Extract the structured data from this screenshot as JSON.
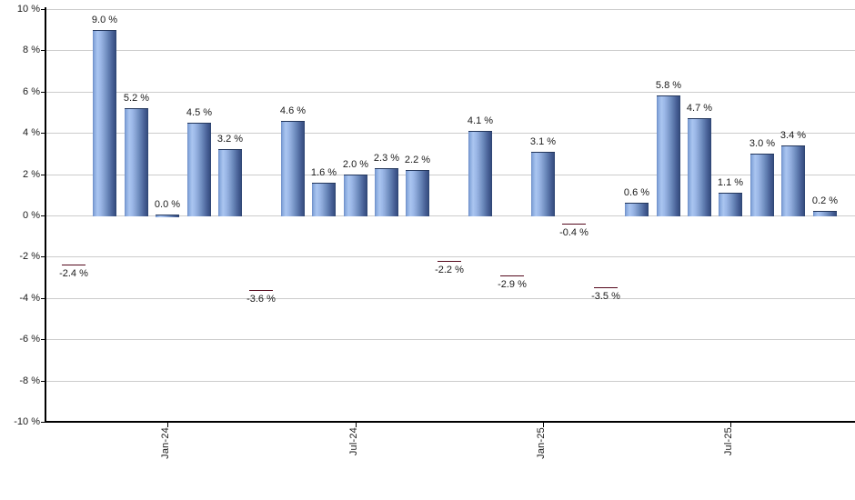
{
  "chart": {
    "background_color": "#ffffff",
    "axis_color": "#000000",
    "grid_color": "#cccccc",
    "text_color": "#1a1a1a",
    "positive_bar_color": "#9cb8e8",
    "positive_bar_edge_color": "#2c4370",
    "negative_bar_color": "#c22c50",
    "negative_bar_edge_color": "#680a22"
  },
  "chart_data": {
    "type": "bar",
    "title": "",
    "xlabel": "",
    "ylabel": "",
    "ylim": [
      -10,
      10
    ],
    "y_tick_step": 2,
    "grid": true,
    "legend": false,
    "y_ticks": [
      {
        "value": 10,
        "label": "10 %"
      },
      {
        "value": 8,
        "label": "8 %"
      },
      {
        "value": 6,
        "label": "6 %"
      },
      {
        "value": 4,
        "label": "4 %"
      },
      {
        "value": 2,
        "label": "2 %"
      },
      {
        "value": 0,
        "label": "0 %"
      },
      {
        "value": -2,
        "label": "-2 %"
      },
      {
        "value": -4,
        "label": "-4 %"
      },
      {
        "value": -6,
        "label": "-6 %"
      },
      {
        "value": -8,
        "label": "-8 %"
      },
      {
        "value": -10,
        "label": "-10 %"
      }
    ],
    "values": [
      -2.4,
      9.0,
      5.2,
      0.0,
      4.5,
      3.2,
      -3.6,
      4.6,
      1.6,
      2.0,
      2.3,
      2.2,
      -2.2,
      4.1,
      -2.9,
      3.1,
      -0.4,
      -3.5,
      0.6,
      5.8,
      4.7,
      1.1,
      3.0,
      3.4,
      0.2
    ],
    "bar_labels": [
      "-2.4 %",
      "9.0 %",
      "5.2 %",
      "0.0 %",
      "4.5 %",
      "3.2 %",
      "-3.6 %",
      "4.6 %",
      "1.6 %",
      "2.0 %",
      "2.3 %",
      "2.2 %",
      "-2.2 %",
      "4.1 %",
      "-2.9 %",
      "3.1 %",
      "-0.4 %",
      "-3.5 %",
      "0.6 %",
      "5.8 %",
      "4.7 %",
      "1.1 %",
      "3.0 %",
      "3.4 %",
      "0.2 %"
    ],
    "x_ticks": [
      {
        "label": "Jan-24",
        "bar_index": 3
      },
      {
        "label": "Jul-24",
        "bar_index": 9
      },
      {
        "label": "Jan-25",
        "bar_index": 15
      },
      {
        "label": "Jul-25",
        "bar_index": 21
      }
    ]
  }
}
